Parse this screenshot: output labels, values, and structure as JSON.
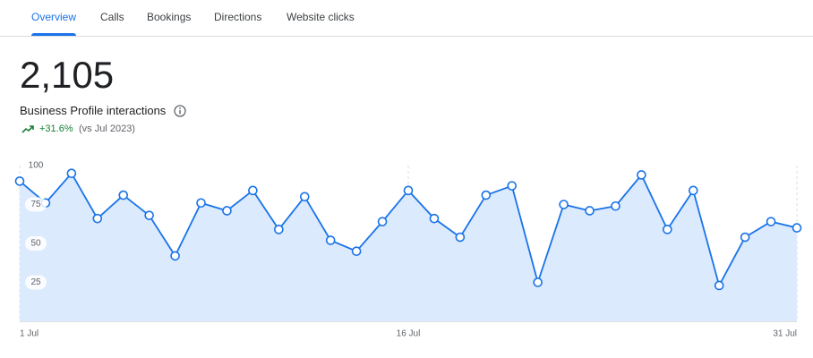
{
  "tabs": [
    "Overview",
    "Calls",
    "Bookings",
    "Directions",
    "Website clicks"
  ],
  "metric": {
    "value": "2,105",
    "label": "Business Profile interactions",
    "change": "+31.6%",
    "comparison": "(vs Jul 2023)"
  },
  "chart_data": {
    "type": "area",
    "x": [
      1,
      2,
      3,
      4,
      5,
      6,
      7,
      8,
      9,
      10,
      11,
      12,
      13,
      14,
      15,
      16,
      17,
      18,
      19,
      20,
      21,
      22,
      23,
      24,
      25,
      26,
      27,
      28,
      29,
      30,
      31
    ],
    "values": [
      90,
      76,
      95,
      66,
      81,
      68,
      42,
      76,
      71,
      84,
      59,
      80,
      52,
      45,
      64,
      84,
      66,
      54,
      81,
      87,
      25,
      75,
      71,
      74,
      94,
      59,
      84,
      23,
      54,
      64,
      60
    ],
    "color": "#1a73e8",
    "xlim": [
      1,
      31
    ],
    "xticks": [
      {
        "value": 1,
        "label": "1 Jul"
      },
      {
        "value": 16,
        "label": "16 Jul"
      },
      {
        "value": 31,
        "label": "31 Jul"
      }
    ],
    "ylim": [
      0,
      100
    ],
    "yticks": [
      25,
      50,
      75,
      100
    ]
  }
}
